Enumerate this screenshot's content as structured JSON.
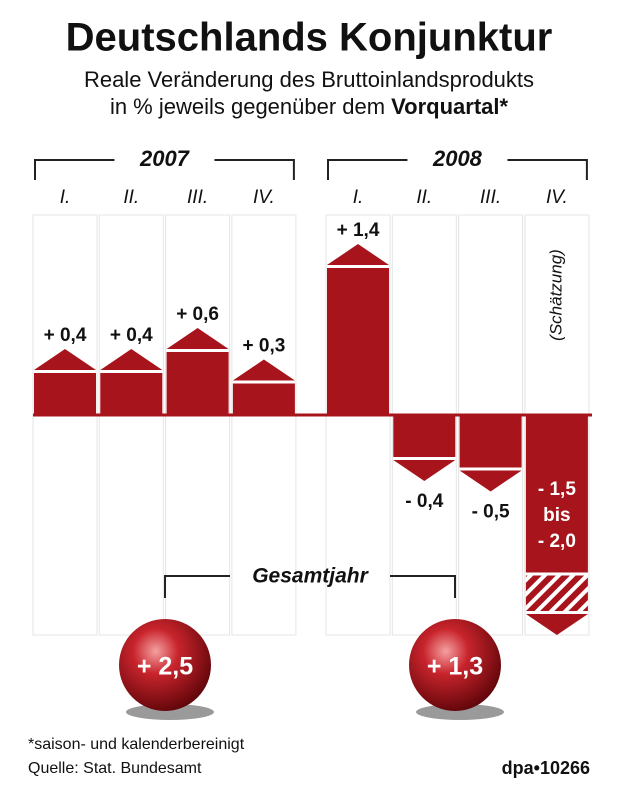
{
  "chart_data": {
    "type": "bar",
    "title": "Deutschlands Konjunktur",
    "subtitle": [
      "Reale Veränderung des Bruttoinlandsprodukts",
      "in % jeweils gegenüber dem"
    ],
    "subtitle_emphasis": "Vorquartal*",
    "color": "#a8141c",
    "groups": [
      {
        "label": "2007",
        "categories": [
          "I.",
          "II.",
          "III.",
          "IV."
        ],
        "values": [
          0.4,
          0.4,
          0.6,
          0.3
        ],
        "value_labels": [
          "+ 0,4",
          "+ 0,4",
          "+ 0,6",
          "+ 0,3"
        ]
      },
      {
        "label": "2008",
        "categories": [
          "I.",
          "II.",
          "III.",
          "IV."
        ],
        "values": [
          1.4,
          -0.4,
          -0.5,
          -1.5
        ],
        "value_labels": [
          "+ 1,4",
          "- 0,4",
          "- 0,5",
          "- 1,5"
        ]
      }
    ],
    "estimate": {
      "note": "(Schätzung)",
      "joiner": "bis",
      "to": -2.0,
      "to_label": "- 2,0"
    },
    "annual": {
      "label": "Gesamtjahr",
      "values": [
        2.5,
        1.3
      ],
      "value_labels": [
        "+ 2,5",
        "+ 1,3"
      ]
    },
    "footnote": "*saison- und kalenderbereinigt",
    "source": "Quelle: Stat. Bundesamt",
    "credit": "dpa•10266"
  }
}
